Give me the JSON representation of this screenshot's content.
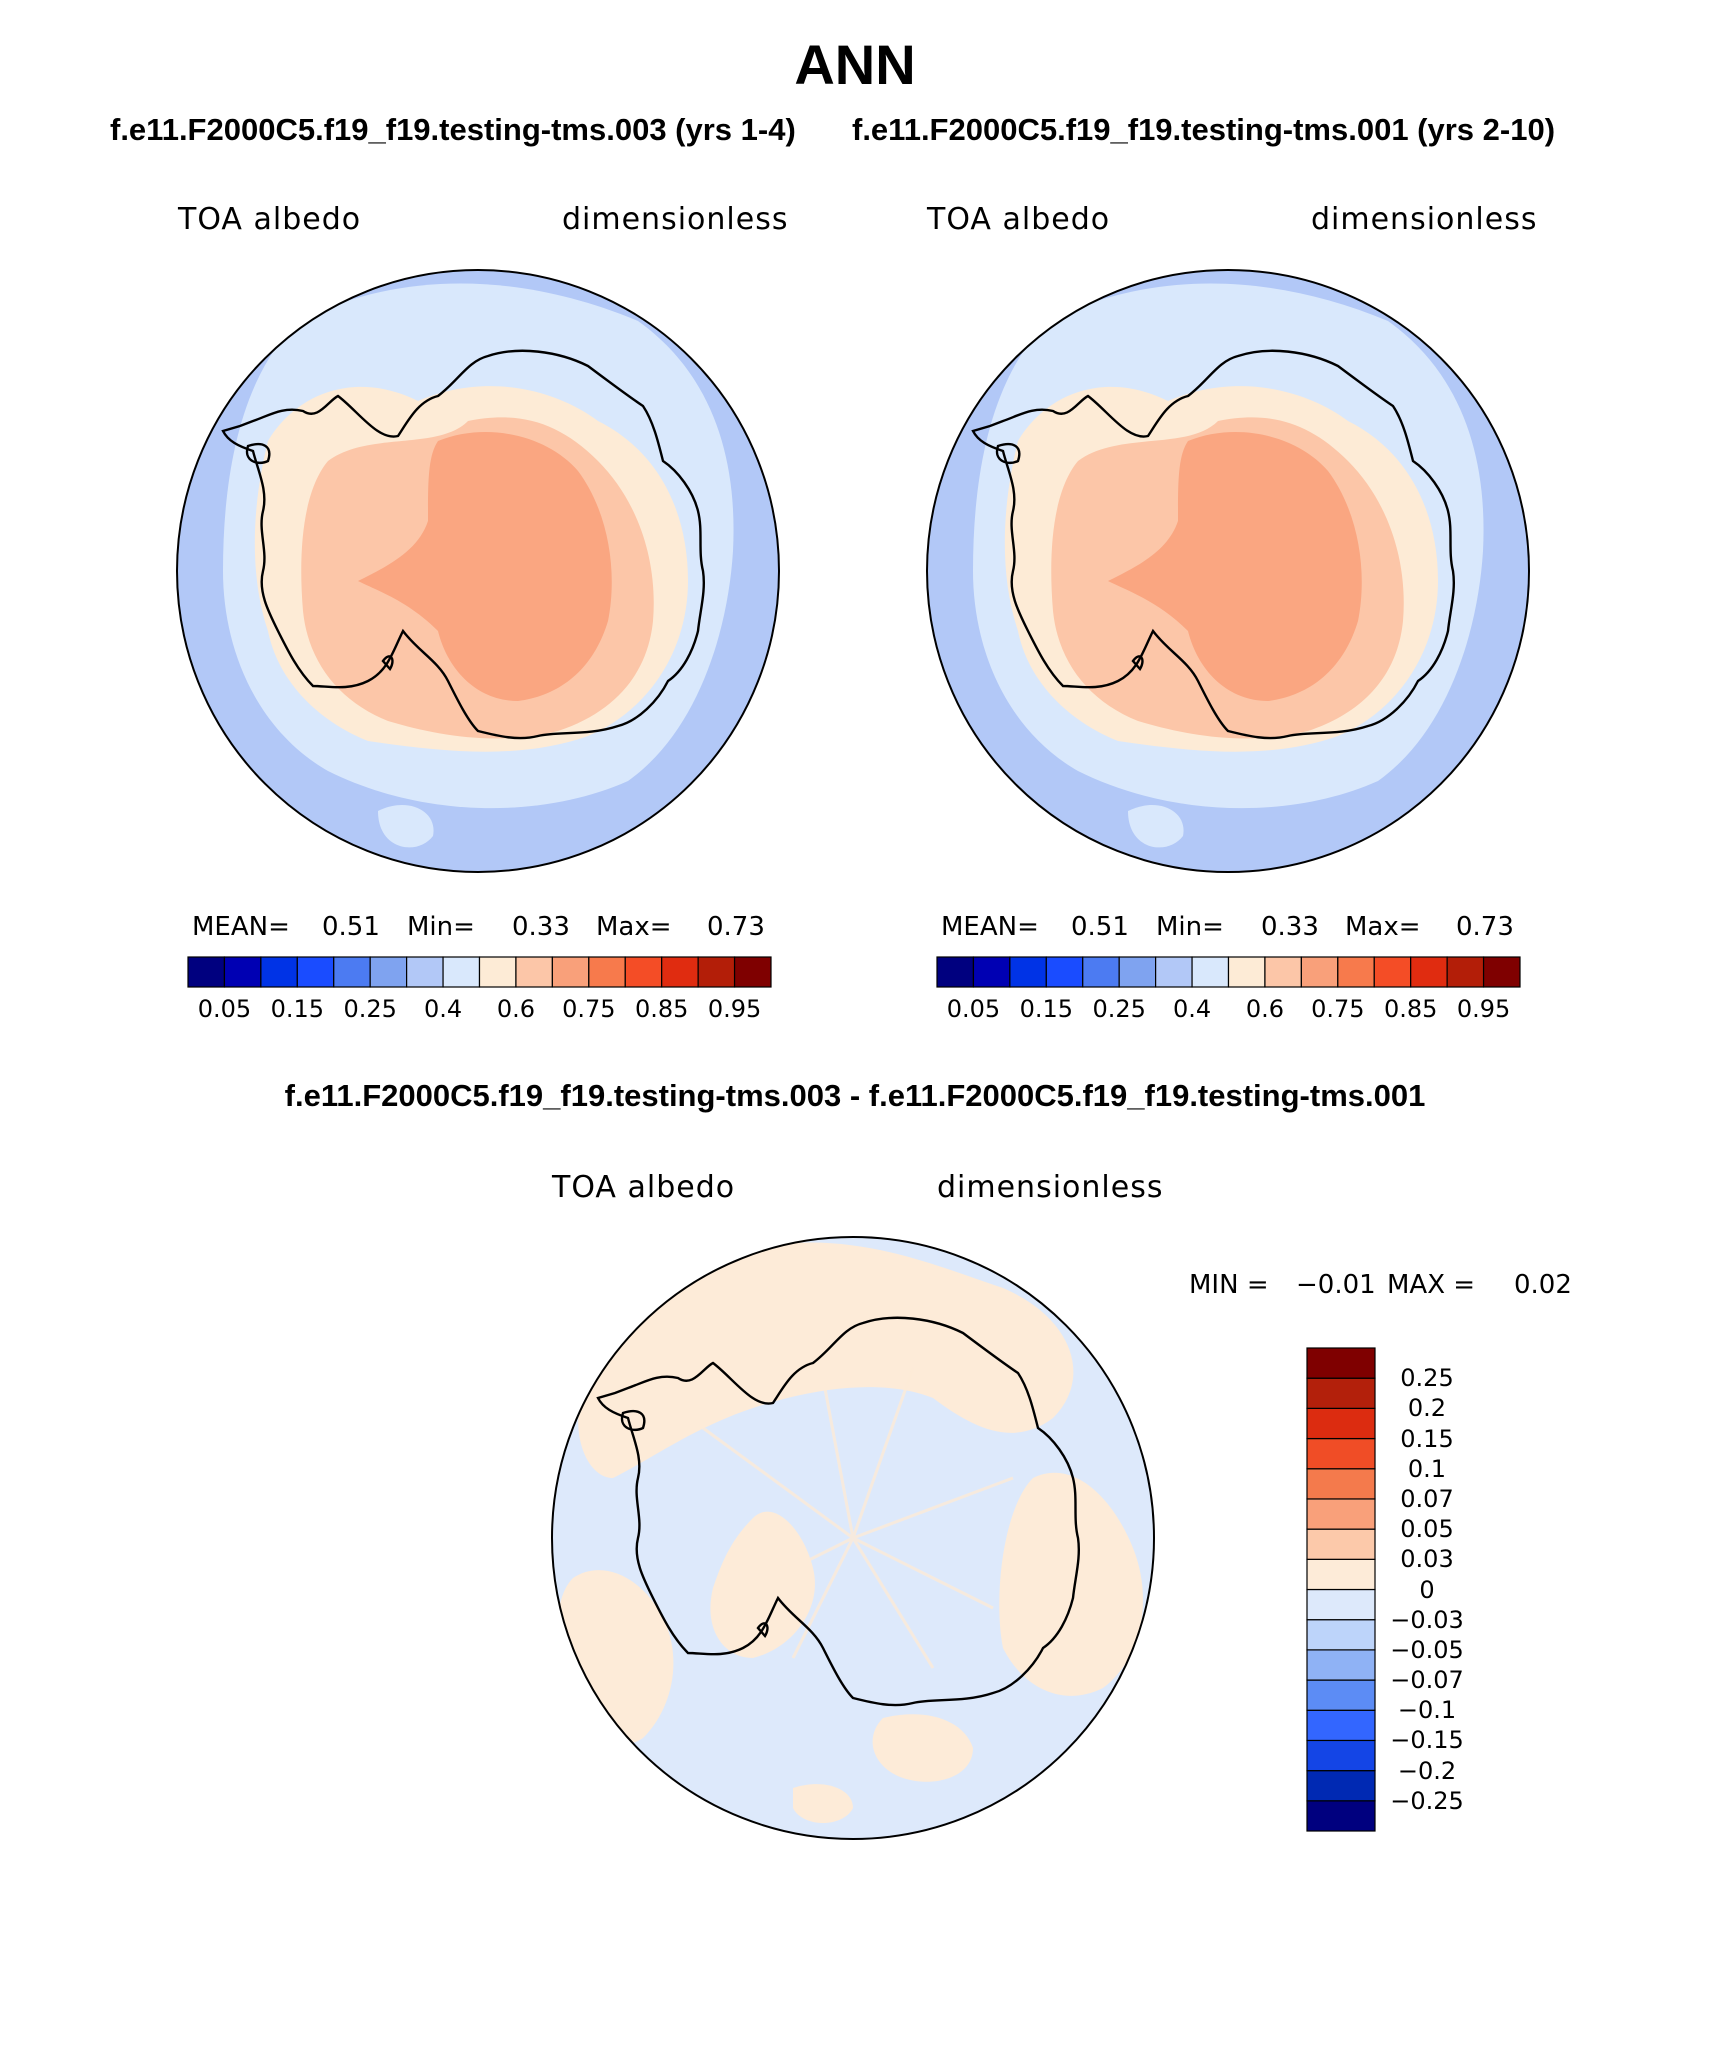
{
  "page": {
    "title": "ANN",
    "panel_title_left": "f.e11.F2000C5.f19_f19.testing-tms.003 (yrs 1-4)",
    "panel_title_right": "f.e11.F2000C5.f19_f19.testing-tms.001 (yrs 2-10)",
    "diff_title": "f.e11.F2000C5.f19_f19.testing-tms.003 - f.e11.F2000C5.f19_f19.testing-tms.001"
  },
  "panels": [
    {
      "variable": "TOA albedo",
      "units": "dimensionless",
      "mean_label": "MEAN=",
      "mean": "0.51",
      "min_label": "Min=",
      "min": "0.33",
      "max_label": "Max=",
      "max": "0.73"
    },
    {
      "variable": "TOA albedo",
      "units": "dimensionless",
      "mean_label": "MEAN=",
      "mean": "0.51",
      "min_label": "Min=",
      "min": "0.33",
      "max_label": "Max=",
      "max": "0.73"
    }
  ],
  "diff_panel": {
    "variable": "TOA albedo",
    "units": "dimensionless",
    "min_label": "MIN =",
    "min": "−0.01",
    "max_label": "MAX =",
    "max": "0.02"
  },
  "colorbar_abs": {
    "colors": [
      "#00007f",
      "#0000b3",
      "#0033e6",
      "#1a4cff",
      "#4c7bf2",
      "#7fa3f0",
      "#b2c8f7",
      "#d9e8fc",
      "#fdebd6",
      "#fcc6a8",
      "#f9a07a",
      "#f77a4c",
      "#f44d26",
      "#e02c10",
      "#b31e08",
      "#7f0000"
    ],
    "labels": [
      "0.05",
      "0.15",
      "0.25",
      "0.4",
      "0.6",
      "0.75",
      "0.85",
      "0.95"
    ]
  },
  "colorbar_diff": {
    "colors": [
      "#00007f",
      "#0029b3",
      "#1445e6",
      "#3366ff",
      "#5c8cf5",
      "#8fb2f5",
      "#bdd4fa",
      "#dde9fb",
      "#fdebd8",
      "#fcc9aa",
      "#f9a07a",
      "#f47a4c",
      "#f04d26",
      "#dc2c10",
      "#b3200b",
      "#7f0000"
    ],
    "labels": [
      "−0.25",
      "−0.2",
      "−0.15",
      "−0.1",
      "−0.07",
      "−0.05",
      "−0.03",
      "0",
      "0.03",
      "0.05",
      "0.07",
      "0.1",
      "0.15",
      "0.2",
      "0.25"
    ]
  }
}
